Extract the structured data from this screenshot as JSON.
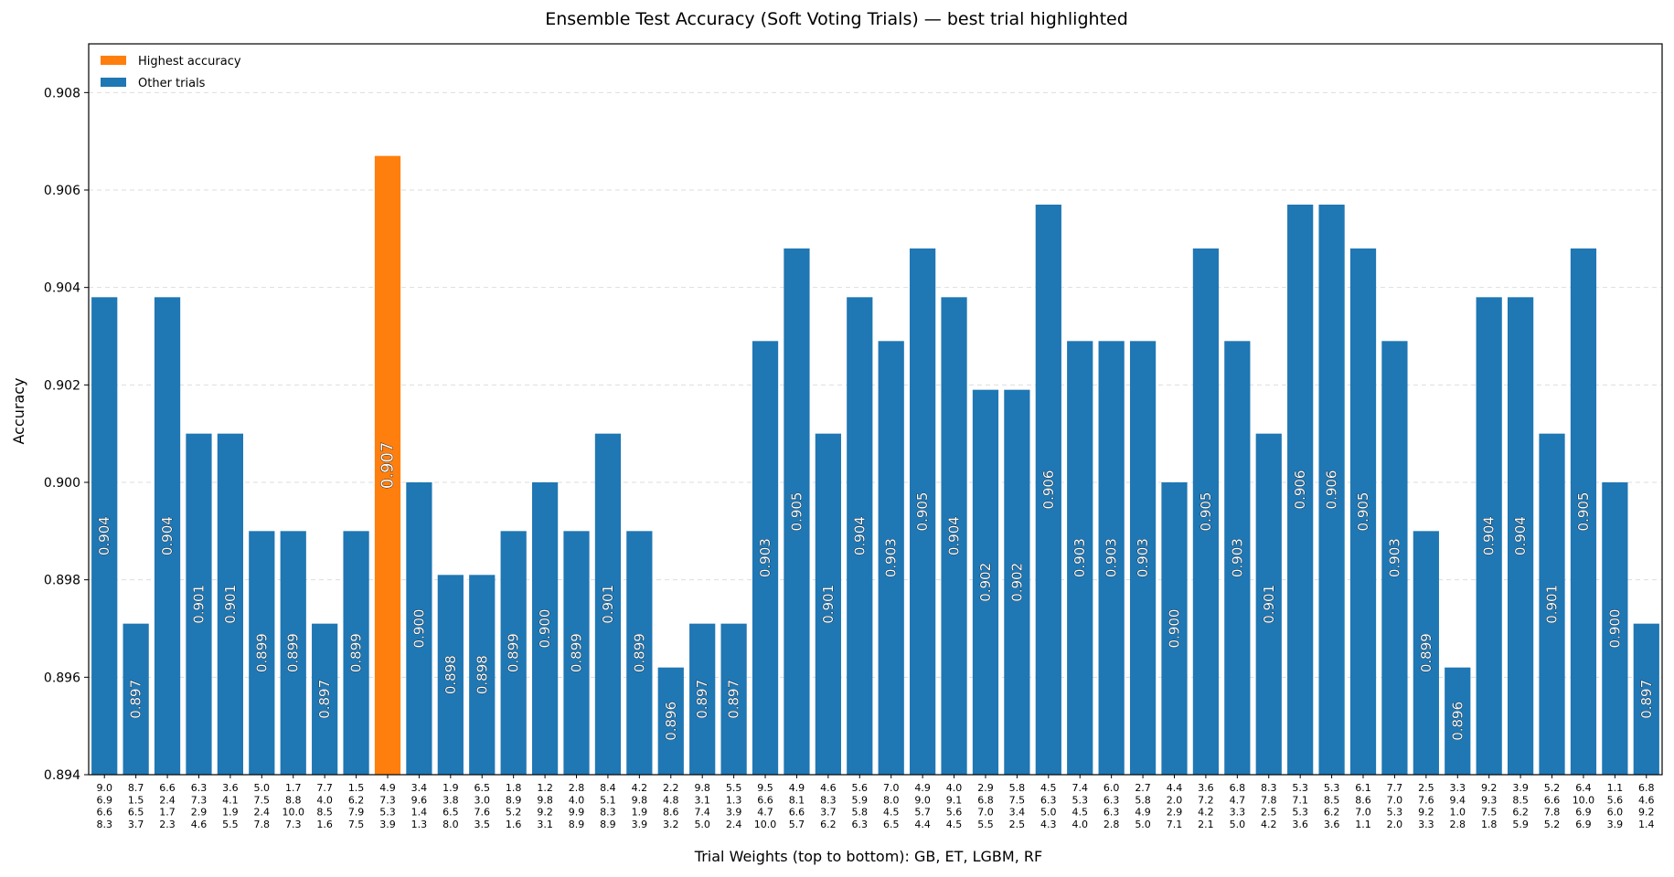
{
  "chart_data": {
    "type": "bar",
    "title": "Ensemble Test Accuracy (Soft Voting Trials) — best trial highlighted",
    "xlabel": "Trial Weights (top to bottom): GB, ET, LGBM, RF",
    "ylabel": "Accuracy",
    "ylim": [
      0.894,
      0.909
    ],
    "yticks": [
      "0.894",
      "0.896",
      "0.898",
      "0.900",
      "0.902",
      "0.904",
      "0.906",
      "0.908"
    ],
    "grid": "horizontal dashed",
    "legend_placement": "top-left",
    "legend": [
      {
        "label": "Highest accuracy",
        "color": "#ff7f0e"
      },
      {
        "label": "Other trials",
        "color": "#1f77b4"
      }
    ],
    "colors": {
      "best": "#ff7f0e",
      "other": "#1f77b4"
    },
    "best_index": 9,
    "trials": [
      {
        "weights": [
          "9.0",
          "6.9",
          "6.6",
          "8.3"
        ],
        "value": 0.9038,
        "label": "0.904"
      },
      {
        "weights": [
          "8.7",
          "1.5",
          "6.5",
          "3.7"
        ],
        "value": 0.8971,
        "label": "0.897"
      },
      {
        "weights": [
          "6.6",
          "2.4",
          "1.7",
          "2.3"
        ],
        "value": 0.9038,
        "label": "0.904"
      },
      {
        "weights": [
          "6.3",
          "7.3",
          "2.9",
          "4.6"
        ],
        "value": 0.901,
        "label": "0.901"
      },
      {
        "weights": [
          "3.6",
          "4.1",
          "1.9",
          "5.5"
        ],
        "value": 0.901,
        "label": "0.901"
      },
      {
        "weights": [
          "5.0",
          "7.5",
          "2.4",
          "7.8"
        ],
        "value": 0.899,
        "label": "0.899"
      },
      {
        "weights": [
          "1.7",
          "8.8",
          "10.0",
          "7.3"
        ],
        "value": 0.899,
        "label": "0.899"
      },
      {
        "weights": [
          "7.7",
          "4.0",
          "8.5",
          "1.6"
        ],
        "value": 0.8971,
        "label": "0.897"
      },
      {
        "weights": [
          "1.5",
          "6.2",
          "7.9",
          "7.5"
        ],
        "value": 0.899,
        "label": "0.899"
      },
      {
        "weights": [
          "4.9",
          "7.3",
          "5.3",
          "3.9"
        ],
        "value": 0.9067,
        "label": "0.907"
      },
      {
        "weights": [
          "3.4",
          "9.6",
          "1.4",
          "1.3"
        ],
        "value": 0.9,
        "label": "0.900"
      },
      {
        "weights": [
          "1.9",
          "3.8",
          "6.5",
          "8.0"
        ],
        "value": 0.8981,
        "label": "0.898"
      },
      {
        "weights": [
          "6.5",
          "3.0",
          "7.6",
          "3.5"
        ],
        "value": 0.8981,
        "label": "0.898"
      },
      {
        "weights": [
          "1.8",
          "8.9",
          "5.2",
          "1.6"
        ],
        "value": 0.899,
        "label": "0.899"
      },
      {
        "weights": [
          "1.2",
          "9.8",
          "9.2",
          "3.1"
        ],
        "value": 0.9,
        "label": "0.900"
      },
      {
        "weights": [
          "2.8",
          "4.0",
          "9.9",
          "8.9"
        ],
        "value": 0.899,
        "label": "0.899"
      },
      {
        "weights": [
          "8.4",
          "5.1",
          "8.3",
          "8.9"
        ],
        "value": 0.901,
        "label": "0.901"
      },
      {
        "weights": [
          "4.2",
          "9.8",
          "1.9",
          "3.9"
        ],
        "value": 0.899,
        "label": "0.899"
      },
      {
        "weights": [
          "2.2",
          "4.8",
          "8.6",
          "3.2"
        ],
        "value": 0.8962,
        "label": "0.896"
      },
      {
        "weights": [
          "9.8",
          "3.1",
          "7.4",
          "5.0"
        ],
        "value": 0.8971,
        "label": "0.897"
      },
      {
        "weights": [
          "5.5",
          "1.3",
          "3.9",
          "2.4"
        ],
        "value": 0.8971,
        "label": "0.897"
      },
      {
        "weights": [
          "9.5",
          "6.6",
          "4.7",
          "10.0"
        ],
        "value": 0.9029,
        "label": "0.903"
      },
      {
        "weights": [
          "4.9",
          "8.1",
          "6.6",
          "5.7"
        ],
        "value": 0.9048,
        "label": "0.905"
      },
      {
        "weights": [
          "4.6",
          "8.3",
          "3.7",
          "6.2"
        ],
        "value": 0.901,
        "label": "0.901"
      },
      {
        "weights": [
          "5.6",
          "5.9",
          "5.8",
          "6.3"
        ],
        "value": 0.9038,
        "label": "0.904"
      },
      {
        "weights": [
          "7.0",
          "8.0",
          "4.5",
          "6.5"
        ],
        "value": 0.9029,
        "label": "0.903"
      },
      {
        "weights": [
          "4.9",
          "9.0",
          "5.7",
          "4.4"
        ],
        "value": 0.9048,
        "label": "0.905"
      },
      {
        "weights": [
          "4.0",
          "9.1",
          "5.6",
          "4.5"
        ],
        "value": 0.9038,
        "label": "0.904"
      },
      {
        "weights": [
          "2.9",
          "6.8",
          "7.0",
          "5.5"
        ],
        "value": 0.9019,
        "label": "0.902"
      },
      {
        "weights": [
          "5.8",
          "7.5",
          "3.4",
          "2.5"
        ],
        "value": 0.9019,
        "label": "0.902"
      },
      {
        "weights": [
          "4.5",
          "6.3",
          "5.0",
          "4.3"
        ],
        "value": 0.9057,
        "label": "0.906"
      },
      {
        "weights": [
          "7.4",
          "5.3",
          "4.5",
          "4.0"
        ],
        "value": 0.9029,
        "label": "0.903"
      },
      {
        "weights": [
          "6.0",
          "6.3",
          "6.3",
          "2.8"
        ],
        "value": 0.9029,
        "label": "0.903"
      },
      {
        "weights": [
          "2.7",
          "5.8",
          "4.9",
          "5.0"
        ],
        "value": 0.9029,
        "label": "0.903"
      },
      {
        "weights": [
          "4.4",
          "2.0",
          "2.9",
          "7.1"
        ],
        "value": 0.9,
        "label": "0.900"
      },
      {
        "weights": [
          "3.6",
          "7.2",
          "4.2",
          "2.1"
        ],
        "value": 0.9048,
        "label": "0.905"
      },
      {
        "weights": [
          "6.8",
          "4.7",
          "3.3",
          "5.0"
        ],
        "value": 0.9029,
        "label": "0.903"
      },
      {
        "weights": [
          "8.3",
          "7.8",
          "2.5",
          "4.2"
        ],
        "value": 0.901,
        "label": "0.901"
      },
      {
        "weights": [
          "5.3",
          "7.1",
          "5.3",
          "3.6"
        ],
        "value": 0.9057,
        "label": "0.906"
      },
      {
        "weights": [
          "5.3",
          "8.5",
          "6.2",
          "3.6"
        ],
        "value": 0.9057,
        "label": "0.906"
      },
      {
        "weights": [
          "6.1",
          "8.6",
          "7.0",
          "1.1"
        ],
        "value": 0.9048,
        "label": "0.905"
      },
      {
        "weights": [
          "7.7",
          "7.0",
          "5.3",
          "2.0"
        ],
        "value": 0.9029,
        "label": "0.903"
      },
      {
        "weights": [
          "2.5",
          "7.6",
          "9.2",
          "3.3"
        ],
        "value": 0.899,
        "label": "0.899"
      },
      {
        "weights": [
          "3.3",
          "9.4",
          "1.0",
          "2.8"
        ],
        "value": 0.8962,
        "label": "0.896"
      },
      {
        "weights": [
          "9.2",
          "9.3",
          "7.5",
          "1.8"
        ],
        "value": 0.9038,
        "label": "0.904"
      },
      {
        "weights": [
          "3.9",
          "8.5",
          "6.2",
          "5.9"
        ],
        "value": 0.9038,
        "label": "0.904"
      },
      {
        "weights": [
          "5.2",
          "6.6",
          "7.8",
          "5.2"
        ],
        "value": 0.901,
        "label": "0.901"
      },
      {
        "weights": [
          "6.4",
          "10.0",
          "6.9",
          "6.9"
        ],
        "value": 0.9048,
        "label": "0.905"
      },
      {
        "weights": [
          "1.1",
          "5.6",
          "6.0",
          "3.9"
        ],
        "value": 0.9,
        "label": "0.900"
      },
      {
        "weights": [
          "6.8",
          "4.6",
          "9.2",
          "1.4"
        ],
        "value": 0.8971,
        "label": "0.897"
      }
    ]
  }
}
